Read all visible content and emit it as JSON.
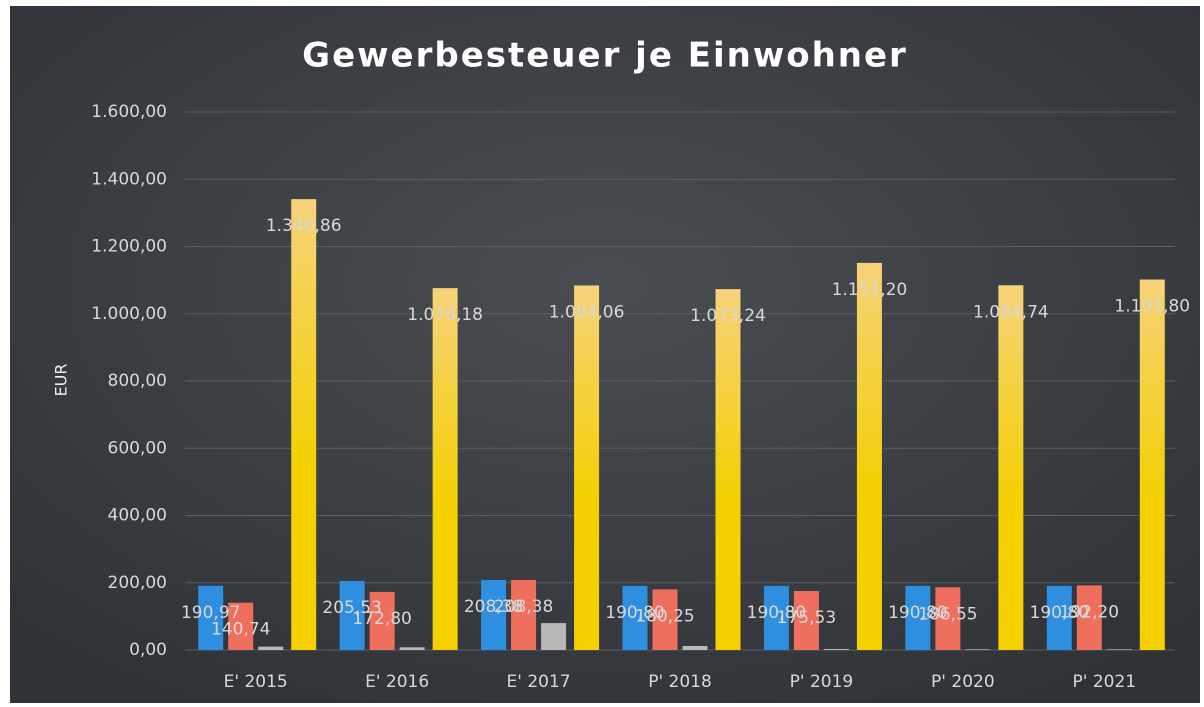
{
  "chart_data": {
    "type": "bar",
    "title": "Gewerbesteuer je Einwohner",
    "y_label": "EUR",
    "categories": [
      "E' 2015",
      "E' 2016",
      "E' 2017",
      "P' 2018",
      "P' 2019",
      "P' 2020",
      "P' 2021"
    ],
    "series": [
      {
        "color": "#2e8fe0",
        "values": [
          190.97,
          205.53,
          208.38,
          190.8,
          190.8,
          190.8,
          190.8
        ],
        "value_labels": [
          "190,97",
          "205,53",
          "208,38",
          "190,80",
          "190,80",
          "190,80",
          "190,80"
        ]
      },
      {
        "color": "#ef6f5e",
        "values": [
          140.74,
          172.8,
          208.38,
          180.25,
          175.53,
          186.55,
          192.2
        ],
        "value_labels": [
          "140,74",
          "172,80",
          "208,38",
          "180,25",
          "175,53",
          "186,55",
          "192,20"
        ]
      },
      {
        "color": "#b8b8b8",
        "values": [
          10,
          8,
          80,
          12,
          3,
          2,
          2
        ]
      },
      {
        "color": "#f3c31a",
        "values": [
          1340.86,
          1076.18,
          1084.06,
          1073.24,
          1151.2,
          1084.74,
          1101.8
        ],
        "value_labels": [
          "1.340,86",
          "1.076,18",
          "1.084,06",
          "1.073,24",
          "1.151,20",
          "1.084,74",
          "1.101,80"
        ]
      }
    ],
    "ylim": [
      0,
      1600
    ],
    "yticks": [
      {
        "value": 0,
        "label": "0,00"
      },
      {
        "value": 200,
        "label": "200,00"
      },
      {
        "value": 400,
        "label": "400,00"
      },
      {
        "value": 600,
        "label": "600,00"
      },
      {
        "value": 800,
        "label": "800,00"
      },
      {
        "value": 1000,
        "label": "1.000,00"
      },
      {
        "value": 1200,
        "label": "1.200,00"
      },
      {
        "value": 1400,
        "label": "1.400,00"
      },
      {
        "value": 1600,
        "label": "1.600,00"
      }
    ],
    "grid": true
  }
}
